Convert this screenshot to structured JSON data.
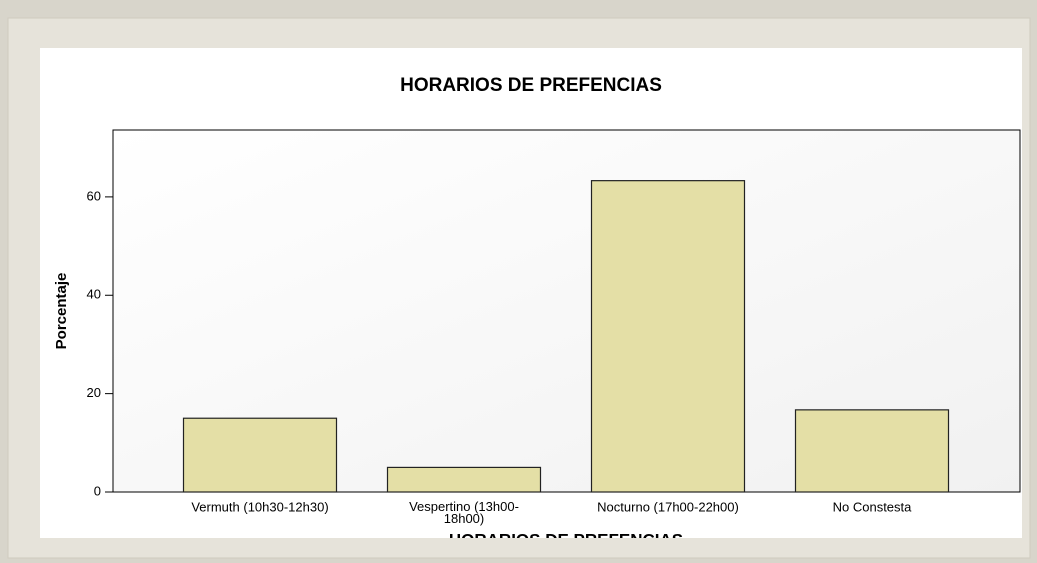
{
  "chart_data": {
    "type": "bar",
    "title": "HORARIOS DE PREFENCIAS",
    "x_label": "HORARIOS DE PREFENCIAS",
    "y_label": "Porcentaje",
    "categories": [
      "Vermuth (10h30-12h30)",
      "Vespertino (13h00-18h00)",
      "Nocturno (17h00-22h00)",
      "No Constesta"
    ],
    "values": [
      15,
      5,
      63.3,
      16.7
    ],
    "color": "#e4dfa6",
    "ylim": [
      0,
      73.6
    ],
    "yticks": [
      0,
      20,
      40,
      60
    ],
    "grid": false
  }
}
